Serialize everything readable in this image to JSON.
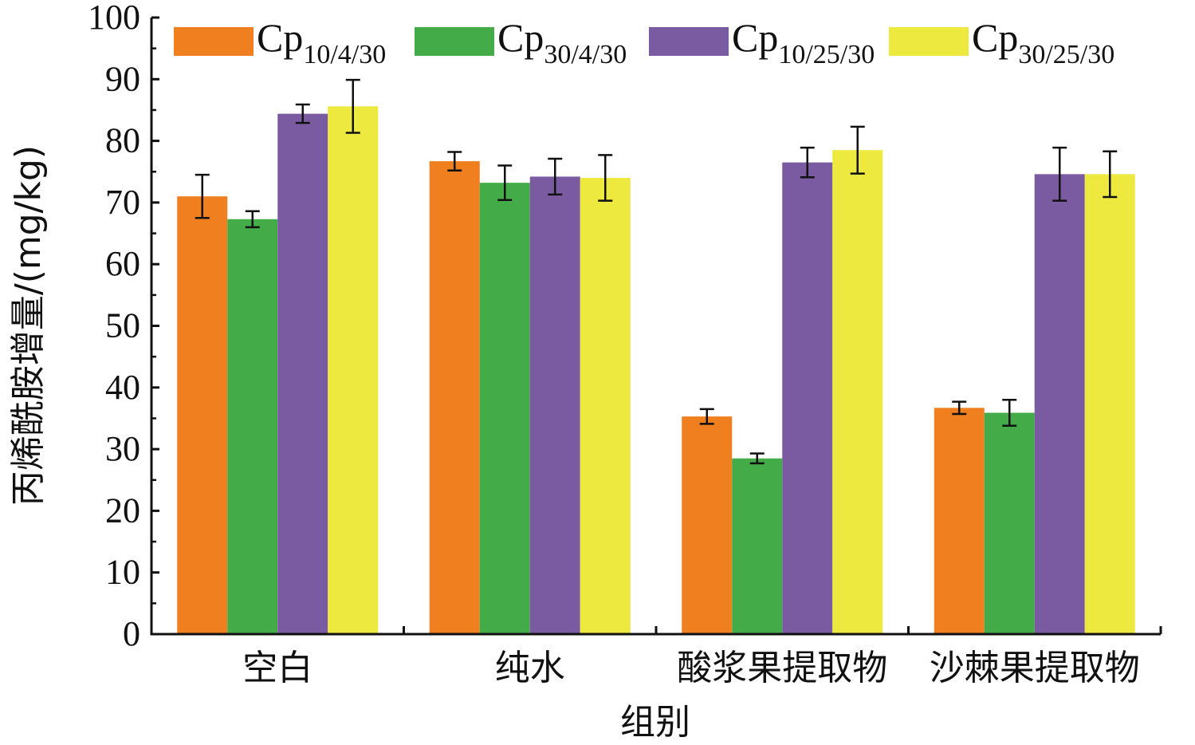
{
  "chart_data": {
    "type": "bar",
    "categories": [
      "空白",
      "纯水",
      "酸浆果提取物",
      "沙棘果提取物"
    ],
    "ylabel": "丙烯酰胺增量/(mg/kg)",
    "xlabel": "组别",
    "ylim": [
      0,
      100
    ],
    "yticks": [
      0,
      10,
      20,
      30,
      40,
      50,
      60,
      70,
      80,
      90,
      100
    ],
    "legend_position": "top",
    "grid": false,
    "series": [
      {
        "name_base": "Cp",
        "name_sub": "10/4/30",
        "color": "#F07F20",
        "values": [
          71.0,
          76.7,
          35.3,
          36.7
        ],
        "errors": [
          3.5,
          1.5,
          1.2,
          1.0
        ]
      },
      {
        "name_base": "Cp",
        "name_sub": "30/4/30",
        "color": "#43AB47",
        "values": [
          67.3,
          73.2,
          28.5,
          35.9
        ],
        "errors": [
          1.3,
          2.8,
          0.8,
          2.1
        ]
      },
      {
        "name_base": "Cp",
        "name_sub": "10/25/30",
        "color": "#7A5BA1",
        "values": [
          84.4,
          74.2,
          76.5,
          74.6
        ],
        "errors": [
          1.5,
          2.9,
          2.4,
          4.3
        ]
      },
      {
        "name_base": "Cp",
        "name_sub": "30/25/30",
        "color": "#EDE93E",
        "values": [
          85.6,
          74.0,
          78.5,
          74.6
        ],
        "errors": [
          4.3,
          3.7,
          3.8,
          3.7
        ]
      }
    ]
  }
}
